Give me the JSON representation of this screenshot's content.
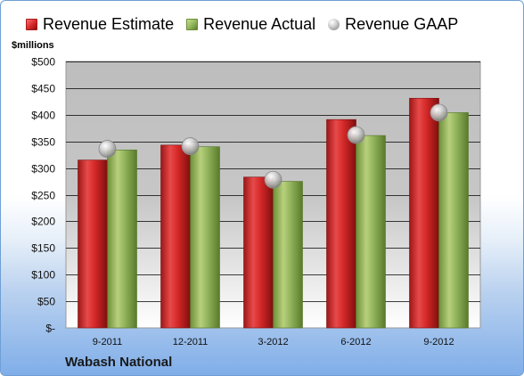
{
  "unit_label": "$millions",
  "company": "Wabash National",
  "colors": {
    "estimate": "#d62828",
    "actual": "#8fb45a",
    "gaap": "#b5b5b5",
    "grid": "#000000"
  },
  "chart_data": {
    "type": "bar",
    "categories": [
      "9-2011",
      "12-2011",
      "3-2012",
      "6-2012",
      "9-2012"
    ],
    "series": [
      {
        "name": "Revenue Estimate",
        "values": [
          315,
          343,
          283,
          391,
          431
        ]
      },
      {
        "name": "Revenue Actual",
        "values": [
          334,
          340,
          275,
          361,
          404
        ]
      },
      {
        "name": "Revenue GAAP",
        "values": [
          336,
          341,
          278,
          362,
          404
        ]
      }
    ],
    "ylabel": "$millions",
    "ylim": [
      0,
      500
    ],
    "yticks": [
      0,
      50,
      100,
      150,
      200,
      250,
      300,
      350,
      400,
      450,
      500
    ],
    "ytick_labels": [
      "$-",
      "$50",
      "$100",
      "$150",
      "$200",
      "$250",
      "$300",
      "$350",
      "$400",
      "$450",
      "$500"
    ],
    "grid": true,
    "legend": "top"
  }
}
